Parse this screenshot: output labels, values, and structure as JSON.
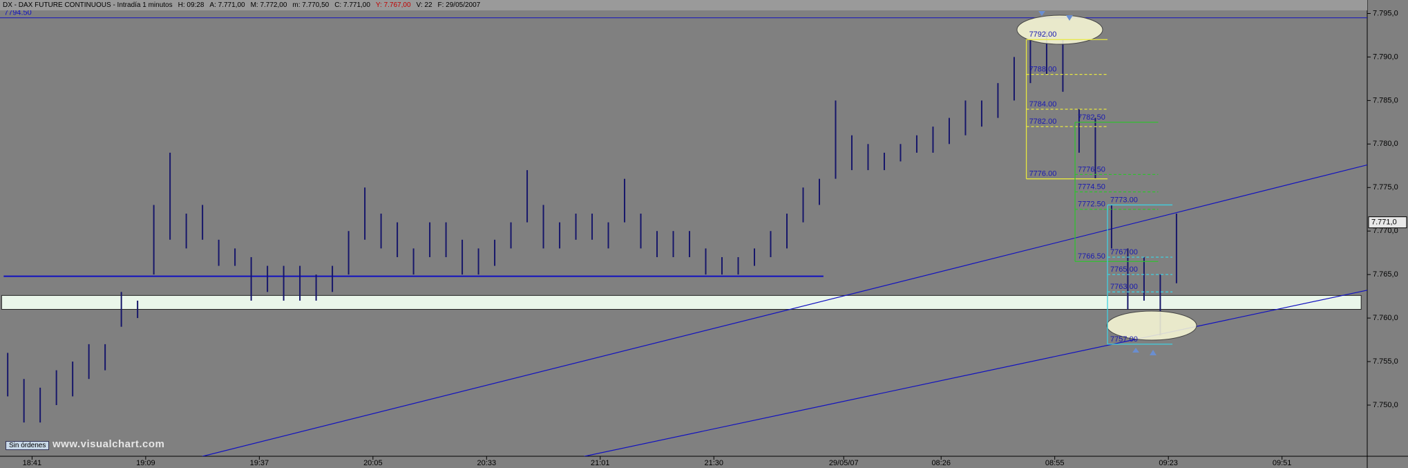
{
  "chart_data": {
    "type": "ohlc",
    "header": {
      "title": "DX - DAX FUTURE CONTINUOUS - Intradía 1 minutos",
      "fields": [
        "H: 09:28",
        "A: 7.771,00",
        "M: 7.772,00",
        "m: 7.770,50",
        "C: 7.771,00",
        "Y: 7.767,00",
        "V: 22",
        "F: 29/05/2007"
      ]
    },
    "color": "#16166a",
    "x": [
      1,
      5,
      9,
      13,
      17,
      21,
      25,
      29,
      33,
      37,
      41,
      45,
      49,
      53,
      57,
      61,
      65,
      69,
      73,
      77,
      81,
      85,
      89,
      93,
      97,
      101,
      105,
      109,
      113,
      117,
      121,
      125,
      129,
      133,
      137,
      141,
      145,
      149,
      153,
      157,
      161,
      165,
      169,
      173,
      177,
      181,
      185,
      189,
      193,
      197,
      201,
      205,
      209,
      213,
      217,
      221,
      225,
      229,
      233,
      237,
      241,
      245,
      249,
      253,
      257,
      261,
      265,
      269,
      273,
      277,
      281,
      285,
      289
    ],
    "high": [
      7756,
      7753,
      7752,
      7754,
      7755,
      7757,
      7757,
      7763,
      7762,
      7773,
      7779,
      7772,
      7773,
      7769,
      7768,
      7767,
      7766,
      7766,
      7766,
      7765,
      7766,
      7770,
      7775,
      7772,
      7771,
      7768,
      7771,
      7771,
      7769,
      7768,
      7769,
      7771,
      7777,
      7773,
      7771,
      7772,
      7772,
      7771,
      7776,
      7772,
      7770,
      7770,
      7770,
      7768,
      7767,
      7767,
      7768,
      7770,
      7772,
      7775,
      7776,
      7785,
      7781,
      7780,
      7779,
      7780,
      7781,
      7782,
      7783,
      7785,
      7785,
      7787,
      7790,
      7792,
      7793,
      7792,
      7784,
      7783,
      7773,
      7768,
      7767,
      7765,
      7772
    ],
    "low": [
      7751,
      7748,
      7748,
      7750,
      7751,
      7753,
      7754,
      7759,
      7760,
      7765,
      7769,
      7768,
      7769,
      7766,
      7766,
      7762,
      7763,
      7762,
      7762,
      7762,
      7763,
      7765,
      7769,
      7768,
      7767,
      7765,
      7767,
      7767,
      7765,
      7765,
      7766,
      7768,
      7771,
      7768,
      7768,
      7769,
      7769,
      7768,
      7771,
      7768,
      7767,
      7767,
      7767,
      7765,
      7765,
      7765,
      7766,
      7767,
      7768,
      7771,
      7773,
      7776,
      7777,
      7777,
      7777,
      7778,
      7779,
      7779,
      7780,
      7781,
      7782,
      7783,
      7785,
      7787,
      7788,
      7786,
      7779,
      7776,
      7768,
      7761,
      7762,
      7758,
      7764
    ],
    "xlim": [
      -0.9,
      336
    ],
    "ylim": [
      7744.2,
      7795.5
    ],
    "xticks": [
      {
        "value": 7,
        "label": "18:41"
      },
      {
        "value": 35,
        "label": "19:09"
      },
      {
        "value": 63,
        "label": "19:37"
      },
      {
        "value": 91,
        "label": "20:05"
      },
      {
        "value": 119,
        "label": "20:33"
      },
      {
        "value": 147,
        "label": "21:01"
      },
      {
        "value": 175,
        "label": "21:30"
      },
      {
        "value": 207,
        "label": "29/05/07"
      },
      {
        "value": 231,
        "label": "08:26"
      },
      {
        "value": 259,
        "label": "08:55"
      },
      {
        "value": 287,
        "label": "09:23"
      },
      {
        "value": 315,
        "label": "09:51"
      }
    ],
    "yticks": [
      {
        "value": 7750,
        "label": "7.750,0"
      },
      {
        "value": 7755,
        "label": "7.755,0"
      },
      {
        "value": 7760,
        "label": "7.760,0"
      },
      {
        "value": 7765,
        "label": "7.765,0"
      },
      {
        "value": 7770,
        "label": "7.770,0"
      },
      {
        "value": 7775,
        "label": "7.775,0"
      },
      {
        "value": 7780,
        "label": "7.780,0"
      },
      {
        "value": 7785,
        "label": "7.785,0"
      },
      {
        "value": 7790,
        "label": "7.790,0"
      },
      {
        "value": 7795,
        "label": "7.795,0"
      }
    ],
    "last": {
      "value": 7771,
      "label": "7.771,0"
    },
    "hlines": [
      {
        "value": 7794.5,
        "label": "7794.50",
        "x": [
          -0.9,
          336
        ]
      },
      {
        "value": 7764.8,
        "x": [
          0,
          202
        ]
      }
    ],
    "band": {
      "low": 7761,
      "high": 7762.6,
      "x": [
        -0.5,
        334.5
      ]
    },
    "trendlines": [
      {
        "x": [
          48.9,
          336
        ],
        "y": [
          7744.1,
          7777.6
        ]
      },
      {
        "x": [
          143,
          336
        ],
        "y": [
          7744.1,
          7763.2
        ]
      }
    ],
    "boxes": [
      {
        "color": "#e8e840",
        "x": [
          252,
          272
        ],
        "levels": [
          {
            "value": 7792,
            "label": "7792.00"
          },
          {
            "value": 7788,
            "label": "7788.00"
          },
          {
            "value": 7784,
            "label": "7784.00"
          },
          {
            "value": 7782,
            "label": "7782.00"
          },
          {
            "value": 7776,
            "label": "7776.00"
          }
        ]
      },
      {
        "color": "#30c030",
        "x": [
          264,
          284.5
        ],
        "levels": [
          {
            "value": 7782.5,
            "label": "7782.50"
          },
          {
            "value": 7776.5,
            "label": "7776.50"
          },
          {
            "value": 7774.5,
            "label": "7774.50"
          },
          {
            "value": 7772.5,
            "label": "7772.50"
          },
          {
            "value": 7766.5,
            "label": "7766.50"
          }
        ]
      },
      {
        "color": "#40d0e0",
        "x": [
          272,
          288
        ],
        "levels": [
          {
            "value": 7773,
            "label": "7773.00"
          },
          {
            "value": 7767,
            "label": "7767.00"
          },
          {
            "value": 7765,
            "label": "7765.00"
          },
          {
            "value": 7763,
            "label": "7763.00"
          },
          {
            "value": 7757,
            "label": "7757.00"
          }
        ]
      }
    ],
    "footer": {
      "button": "Sin órdenes",
      "watermark": "www.visualchart.com"
    }
  }
}
